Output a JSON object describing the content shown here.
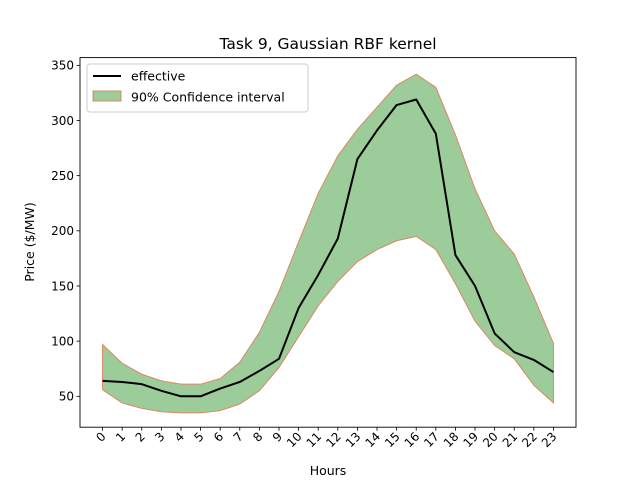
{
  "chart_data": {
    "type": "line",
    "title": "Task 9, Gaussian RBF kernel",
    "xlabel": "Hours",
    "ylabel": "Price ($/MW)",
    "x": [
      0,
      1,
      2,
      3,
      4,
      5,
      6,
      7,
      8,
      9,
      10,
      11,
      12,
      13,
      14,
      15,
      16,
      17,
      18,
      19,
      20,
      21,
      22,
      23
    ],
    "xlim": [
      -1.15,
      24.15
    ],
    "ylim": [
      22,
      357
    ],
    "yticks": [
      50,
      100,
      150,
      200,
      250,
      300,
      350
    ],
    "grid": false,
    "legend_position": "upper left",
    "series": [
      {
        "name": "effective",
        "type": "line",
        "color": "#000000",
        "values": [
          64,
          63,
          61,
          55,
          50,
          50,
          57,
          63,
          73,
          84,
          130,
          160,
          193,
          265,
          291,
          314,
          319,
          288,
          178,
          150,
          107,
          90,
          83,
          72
        ]
      }
    ],
    "band": {
      "name": "90% Confidence interval",
      "fill_color": "#9ccc9a",
      "edge_color": "#dd8866",
      "upper": [
        97,
        80,
        70,
        64,
        61,
        61,
        66,
        81,
        108,
        145,
        190,
        234,
        268,
        292,
        312,
        332,
        342,
        330,
        287,
        238,
        200,
        179,
        140,
        98
      ],
      "lower": [
        56,
        44,
        39,
        36,
        35,
        35,
        37,
        43,
        55,
        76,
        104,
        132,
        154,
        172,
        183,
        191,
        195,
        183,
        152,
        118,
        96,
        84,
        60,
        44
      ]
    }
  }
}
